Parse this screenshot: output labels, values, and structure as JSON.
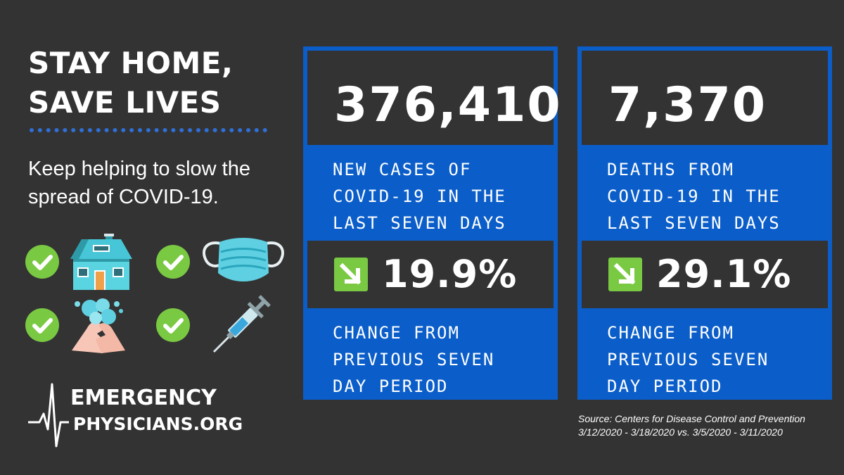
{
  "headline": {
    "line1": "STAY HOME,",
    "line2": "SAVE LIVES"
  },
  "subtitle": {
    "line1": "Keep helping to slow the",
    "line2": "spread of COVID-19."
  },
  "icons": [
    "check-icon",
    "house-icon",
    "check-icon",
    "face-mask-icon",
    "check-icon",
    "hand-washing-icon",
    "check-icon",
    "syringe-icon"
  ],
  "cards": [
    {
      "number": "376,410",
      "label": [
        "NEW CASES OF",
        "COVID-19 IN THE",
        "LAST SEVEN DAYS"
      ],
      "change": "19.9%",
      "change_icon": "down-right-arrow-icon",
      "change_label": [
        "CHANGE FROM",
        "PREVIOUS SEVEN",
        "DAY PERIOD"
      ]
    },
    {
      "number": "7,370",
      "label": [
        "DEATHS FROM",
        "COVID-19 IN THE",
        "LAST SEVEN DAYS"
      ],
      "change": "29.1%",
      "change_icon": "down-right-arrow-icon",
      "change_label": [
        "CHANGE FROM",
        "PREVIOUS SEVEN",
        "DAY PERIOD"
      ]
    }
  ],
  "logo": {
    "line1": "EMERGENCY",
    "line2": "PHYSICIANS.ORG"
  },
  "source": {
    "line1": "Source: Centers for Disease Control and Prevention",
    "line2": "3/12/2020 - 3/18/2020 vs. 3/5/2020 - 3/11/2020"
  },
  "colors": {
    "background": "#333333",
    "accent_blue": "#0b5ec9",
    "check_green": "#7ac943",
    "text": "#ffffff"
  }
}
